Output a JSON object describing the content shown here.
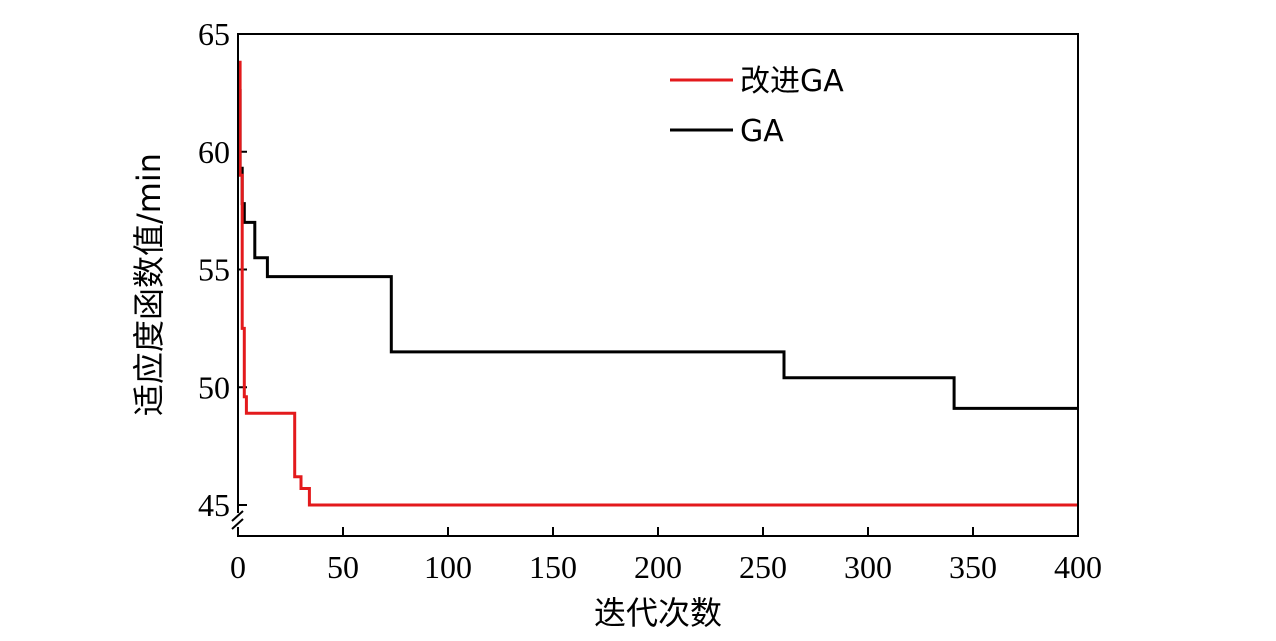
{
  "chart_data": {
    "type": "line",
    "xlabel": "迭代次数",
    "ylabel": "适应度函数值/min",
    "xlim": [
      0,
      400
    ],
    "ylim": [
      45,
      65
    ],
    "y_axis_break": true,
    "x_ticks": [
      "0",
      "50",
      "100",
      "150",
      "200",
      "250",
      "300",
      "350",
      "400"
    ],
    "y_ticks": [
      "45",
      "50",
      "55",
      "60",
      "65"
    ],
    "legend_position": "top-right",
    "grid": false,
    "series": [
      {
        "name": "改进GA",
        "color": "#e31a1c",
        "x": [
          0,
          1,
          1,
          2,
          2,
          3,
          3,
          4,
          4,
          27,
          27,
          30,
          30,
          34,
          34,
          400
        ],
        "y": [
          63.8,
          63.8,
          59.0,
          59.0,
          52.5,
          52.5,
          49.6,
          49.6,
          48.9,
          48.9,
          46.2,
          46.2,
          45.7,
          45.7,
          45.0,
          45.0
        ]
      },
      {
        "name": "GA",
        "color": "#000000",
        "x": [
          0,
          1,
          1,
          2,
          2,
          3,
          3,
          8,
          8,
          14,
          14,
          73,
          73,
          260,
          260,
          341,
          341,
          400
        ],
        "y": [
          62.6,
          62.6,
          59.3,
          59.3,
          57.8,
          57.8,
          57.0,
          57.0,
          55.5,
          55.5,
          54.7,
          54.7,
          51.5,
          51.5,
          50.4,
          50.4,
          49.1,
          49.1
        ]
      }
    ]
  }
}
